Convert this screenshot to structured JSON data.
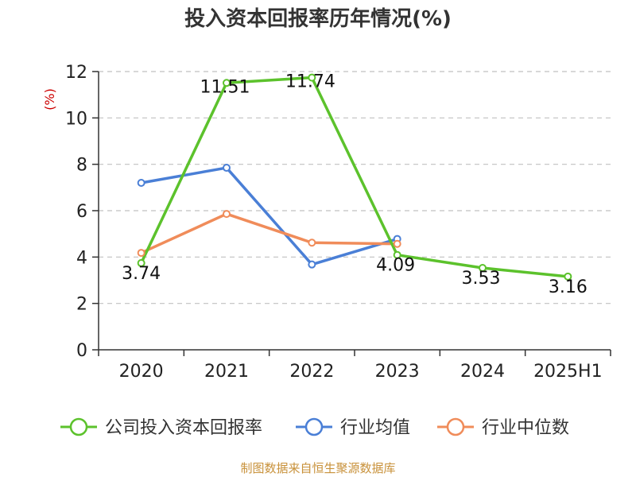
{
  "title": "投入资本回报率历年情况(%)",
  "source": "制图数据来自恒生聚源数据库",
  "colors": {
    "company": "#5cc22c",
    "industry_avg": "#4a7fd6",
    "industry_median": "#f08c5a",
    "ylabel": "#cc0000",
    "source": "#c8913a",
    "grid": "#c0c0c0"
  },
  "chart_data": {
    "type": "line",
    "title": "投入资本回报率历年情况(%)",
    "ylabel": "(%)",
    "xlabel": "",
    "categories": [
      "2020",
      "2021",
      "2022",
      "2023",
      "2024",
      "2025H1"
    ],
    "ylim": [
      0,
      12
    ],
    "yticks": [
      0,
      2,
      4,
      6,
      8,
      10,
      12
    ],
    "grid": true,
    "legend_position": "bottom",
    "series": [
      {
        "name": "公司投入资本回报率",
        "color": "#5cc22c",
        "values": [
          3.74,
          11.51,
          11.74,
          4.09,
          3.53,
          3.16
        ],
        "labels": [
          "3.74",
          "11.51",
          "11.74",
          "4.09",
          "3.53",
          "3.16"
        ]
      },
      {
        "name": "行业均值",
        "color": "#4a7fd6",
        "values": [
          7.2,
          7.85,
          3.68,
          4.78,
          null,
          null
        ]
      },
      {
        "name": "行业中位数",
        "color": "#f08c5a",
        "values": [
          4.18,
          5.86,
          4.62,
          4.57,
          null,
          null
        ]
      }
    ]
  }
}
